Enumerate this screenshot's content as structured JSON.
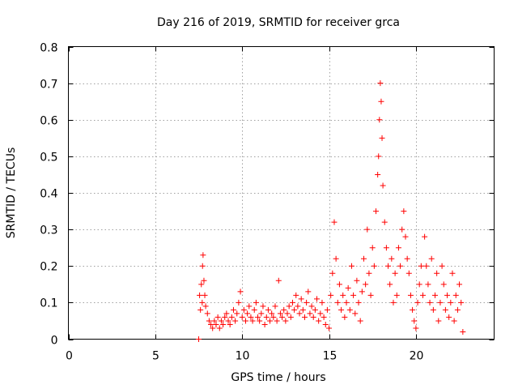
{
  "chart_data": {
    "type": "scatter",
    "title": "Day 216 of 2019, SRMTID for receiver grca",
    "xlabel": "GPS time / hours",
    "ylabel": "SRMTID / TECUs",
    "xlim": [
      0,
      24.5
    ],
    "ylim": [
      0,
      0.8
    ],
    "xticks": [
      0,
      5,
      10,
      15,
      20
    ],
    "xtick_labels": [
      "0",
      "5",
      "10",
      "15",
      "20"
    ],
    "yticks": [
      0,
      0.1,
      0.2,
      0.3,
      0.4,
      0.5,
      0.6,
      0.7,
      0.8
    ],
    "ytick_labels": [
      "0",
      "0.1",
      "0.2",
      "0.3",
      "0.4",
      "0.5",
      "0.6",
      "0.7",
      "0.8"
    ],
    "grid": true,
    "marker": "+",
    "series": [
      {
        "name": "SRMTID",
        "color": "#ff0000",
        "x": [
          7.5,
          7.55,
          7.6,
          7.65,
          7.7,
          7.72,
          7.75,
          7.8,
          7.85,
          7.9,
          8.0,
          8.1,
          8.2,
          8.3,
          8.4,
          8.5,
          8.6,
          8.7,
          8.8,
          8.9,
          9.0,
          9.1,
          9.2,
          9.3,
          9.4,
          9.5,
          9.6,
          9.7,
          9.8,
          9.9,
          10.0,
          10.1,
          10.2,
          10.3,
          10.4,
          10.5,
          10.6,
          10.7,
          10.8,
          10.9,
          11.0,
          11.1,
          11.2,
          11.3,
          11.4,
          11.5,
          11.6,
          11.7,
          11.8,
          11.9,
          12.0,
          12.1,
          12.2,
          12.3,
          12.4,
          12.5,
          12.6,
          12.7,
          12.8,
          12.9,
          13.0,
          13.1,
          13.2,
          13.3,
          13.4,
          13.5,
          13.6,
          13.7,
          13.8,
          13.9,
          14.0,
          14.1,
          14.2,
          14.3,
          14.4,
          14.5,
          14.6,
          14.7,
          14.8,
          14.9,
          15.0,
          15.1,
          15.2,
          15.3,
          15.4,
          15.5,
          15.6,
          15.7,
          15.8,
          15.9,
          16.0,
          16.1,
          16.2,
          16.3,
          16.4,
          16.5,
          16.6,
          16.7,
          16.8,
          16.9,
          17.0,
          17.1,
          17.2,
          17.3,
          17.4,
          17.5,
          17.6,
          17.7,
          17.8,
          17.85,
          17.9,
          17.95,
          18.0,
          18.05,
          18.1,
          18.2,
          18.3,
          18.4,
          18.5,
          18.6,
          18.7,
          18.8,
          18.9,
          19.0,
          19.1,
          19.2,
          19.3,
          19.4,
          19.5,
          19.6,
          19.7,
          19.8,
          19.9,
          20.0,
          20.1,
          20.2,
          20.3,
          20.4,
          20.5,
          20.6,
          20.7,
          20.8,
          20.9,
          21.0,
          21.1,
          21.2,
          21.3,
          21.4,
          21.5,
          21.6,
          21.7,
          21.8,
          21.9,
          22.0,
          22.1,
          22.2,
          22.3,
          22.4,
          22.5,
          22.6,
          22.7
        ],
        "y": [
          0.0,
          0.12,
          0.08,
          0.15,
          0.1,
          0.2,
          0.23,
          0.16,
          0.12,
          0.09,
          0.07,
          0.05,
          0.04,
          0.03,
          0.05,
          0.04,
          0.06,
          0.03,
          0.05,
          0.04,
          0.06,
          0.07,
          0.05,
          0.04,
          0.06,
          0.08,
          0.05,
          0.07,
          0.1,
          0.13,
          0.06,
          0.08,
          0.05,
          0.07,
          0.09,
          0.06,
          0.05,
          0.08,
          0.1,
          0.06,
          0.05,
          0.07,
          0.09,
          0.04,
          0.06,
          0.08,
          0.05,
          0.07,
          0.06,
          0.09,
          0.05,
          0.16,
          0.07,
          0.06,
          0.08,
          0.05,
          0.07,
          0.09,
          0.06,
          0.1,
          0.08,
          0.12,
          0.09,
          0.07,
          0.11,
          0.08,
          0.06,
          0.1,
          0.13,
          0.07,
          0.09,
          0.06,
          0.08,
          0.11,
          0.05,
          0.07,
          0.1,
          0.06,
          0.04,
          0.08,
          0.03,
          0.12,
          0.18,
          0.32,
          0.22,
          0.1,
          0.15,
          0.08,
          0.12,
          0.06,
          0.1,
          0.14,
          0.08,
          0.2,
          0.12,
          0.07,
          0.16,
          0.1,
          0.05,
          0.13,
          0.22,
          0.15,
          0.3,
          0.18,
          0.12,
          0.25,
          0.2,
          0.35,
          0.45,
          0.5,
          0.6,
          0.7,
          0.65,
          0.55,
          0.42,
          0.32,
          0.25,
          0.2,
          0.15,
          0.22,
          0.1,
          0.18,
          0.12,
          0.25,
          0.2,
          0.3,
          0.35,
          0.28,
          0.22,
          0.18,
          0.12,
          0.08,
          0.05,
          0.03,
          0.1,
          0.15,
          0.2,
          0.12,
          0.28,
          0.2,
          0.15,
          0.1,
          0.22,
          0.08,
          0.12,
          0.18,
          0.05,
          0.1,
          0.2,
          0.15,
          0.08,
          0.12,
          0.06,
          0.1,
          0.18,
          0.05,
          0.12,
          0.08,
          0.15,
          0.1,
          0.02
        ]
      }
    ]
  }
}
